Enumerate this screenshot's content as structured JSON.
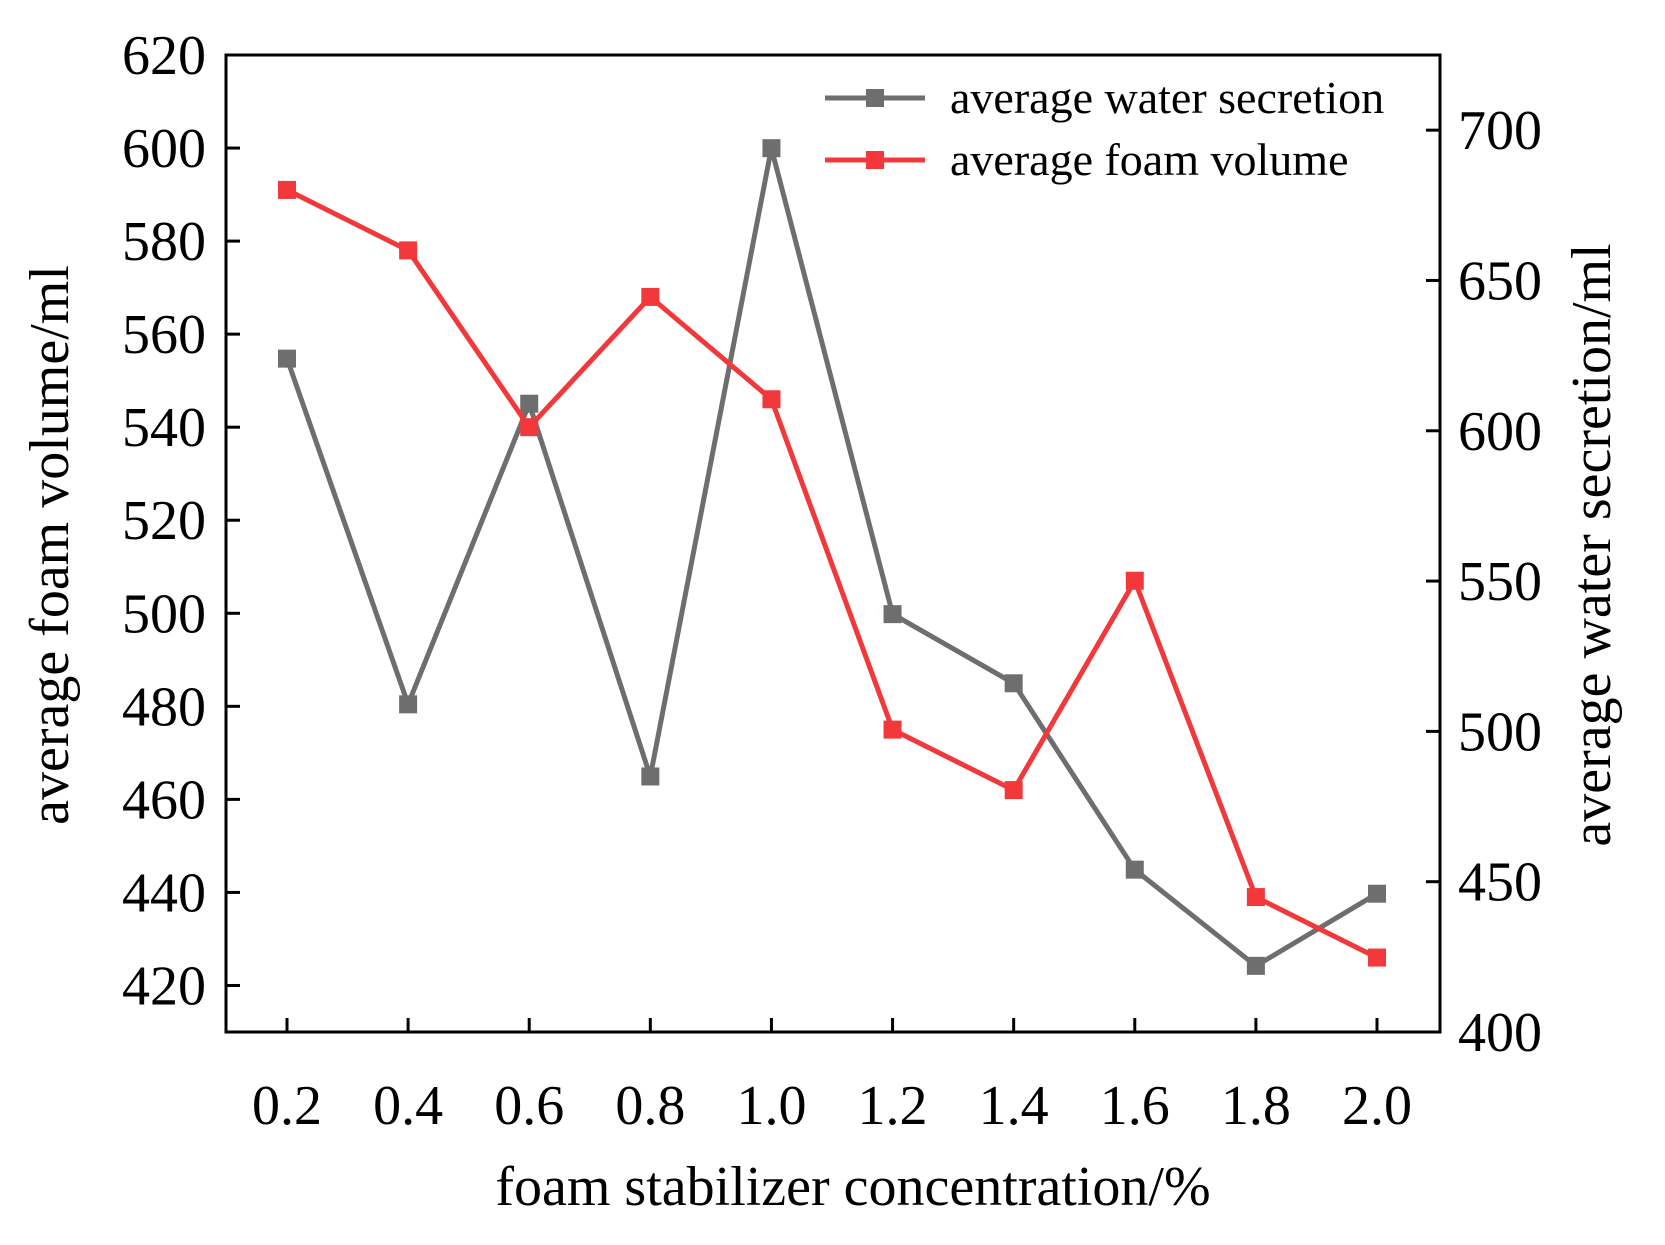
{
  "chart_data": {
    "type": "line",
    "title": "",
    "x": [
      0.2,
      0.4,
      0.6,
      0.8,
      1.0,
      1.2,
      1.4,
      1.6,
      1.8,
      2.0
    ],
    "x_tick_labels": [
      "0.2",
      "0.4",
      "0.6",
      "0.8",
      "1.0",
      "1.2",
      "1.4",
      "1.6",
      "1.8",
      "2.0"
    ],
    "xlabel": "foam stabilizer concentration/%",
    "ylabel_left": "average foam volume/ml",
    "ylabel_right": "average water secretion/ml",
    "ylim_left": [
      410,
      620
    ],
    "ylim_right": [
      400,
      725
    ],
    "y_ticks_left": [
      420,
      440,
      460,
      480,
      500,
      520,
      540,
      560,
      580,
      600,
      620
    ],
    "y_ticks_right": [
      400,
      450,
      500,
      550,
      600,
      650,
      700
    ],
    "legend_position": "top-right",
    "series": [
      {
        "name": "average water secretion",
        "axis": "right",
        "color": "#6e6e6e",
        "values": [
          624,
          509,
          609,
          485,
          694,
          539,
          516,
          454,
          422,
          446
        ]
      },
      {
        "name": "average foam volume",
        "axis": "left",
        "color": "#f2383a",
        "values": [
          591,
          578,
          540,
          568,
          546,
          475,
          462,
          507,
          439,
          426
        ]
      }
    ]
  }
}
